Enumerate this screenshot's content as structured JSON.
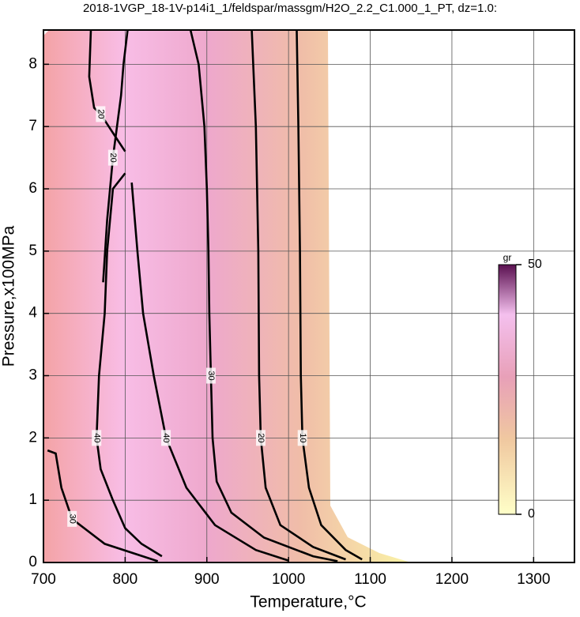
{
  "chart_data": {
    "type": "contour",
    "title": "2018-1VGP_18-1V-p14i1_1/feldspar/massgm/H2O_2.2_C1.000_1_PT, dz=1.0:",
    "xlabel": "Temperature,°C",
    "ylabel": "Pressure,x100MPa",
    "xlim": [
      700,
      1350
    ],
    "ylim": [
      0,
      8.55
    ],
    "xticks": [
      700,
      800,
      900,
      1000,
      1100,
      1200,
      1300
    ],
    "yticks": [
      0,
      1,
      2,
      3,
      4,
      5,
      6,
      7,
      8
    ],
    "grid": true,
    "contours": [
      {
        "level": 40,
        "x": [
          845,
          820,
          800,
          785,
          770,
          765,
          768,
          775,
          778,
          785,
          800
        ],
        "y": [
          0.1,
          0.3,
          0.55,
          1.0,
          1.5,
          2.0,
          3.0,
          4.0,
          5.0,
          6.0,
          6.25
        ]
      },
      {
        "level": 40,
        "x": [
          808,
          815,
          822,
          835,
          850,
          875,
          910,
          960,
          1000
        ],
        "y": [
          6.1,
          5.0,
          4.0,
          3.0,
          2.0,
          1.2,
          0.6,
          0.2,
          0.03
        ]
      },
      {
        "level": 30,
        "x": [
          880,
          890,
          897,
          900,
          902,
          903,
          905,
          907,
          912,
          930,
          970,
          1030,
          1060
        ],
        "y": [
          8.55,
          8.0,
          7.0,
          6.0,
          5.0,
          4.0,
          3.0,
          2.0,
          1.3,
          0.8,
          0.4,
          0.1,
          0.02
        ]
      },
      {
        "level": 20,
        "x": [
          955,
          960,
          963,
          964,
          966,
          972,
          990,
          1030,
          1070
        ],
        "y": [
          8.55,
          7.0,
          5.0,
          3.0,
          2.0,
          1.2,
          0.6,
          0.25,
          0.05
        ]
      },
      {
        "level": 10,
        "x": [
          1010,
          1012,
          1014,
          1015,
          1017,
          1025,
          1040,
          1070,
          1090
        ],
        "y": [
          8.55,
          7.0,
          5.0,
          3.0,
          2.0,
          1.2,
          0.6,
          0.2,
          0.05
        ]
      },
      {
        "level": 20,
        "x": [
          758,
          756,
          762,
          770,
          790,
          800
        ],
        "y": [
          8.55,
          7.8,
          7.3,
          7.2,
          6.8,
          6.6
        ]
      },
      {
        "level": 20,
        "x": [
          803,
          798,
          795,
          785,
          778,
          773
        ],
        "y": [
          8.55,
          8.0,
          7.5,
          6.5,
          5.5,
          4.5
        ]
      },
      {
        "level": 30,
        "x": [
          705,
          715,
          722,
          735,
          775,
          840
        ],
        "y": [
          1.8,
          1.75,
          1.2,
          0.7,
          0.3,
          0.02
        ]
      }
    ],
    "colorbar": {
      "label": "gr",
      "clim": [
        0,
        50
      ],
      "ticks": [
        0,
        50
      ]
    }
  }
}
